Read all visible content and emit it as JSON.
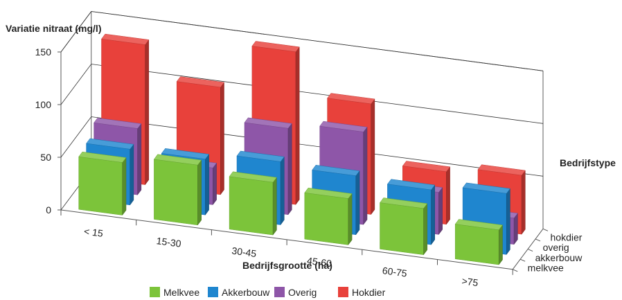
{
  "chart_data": {
    "type": "bar",
    "style": "3d-column",
    "title": "Variatie nitraat (mg/l)",
    "xlabel": "Bedrijfsgrootte (ha)",
    "zlabel": "Bedrijfstype",
    "ylim": [
      0,
      150
    ],
    "yticks": [
      "0",
      "50",
      "100",
      "150"
    ],
    "grid": true,
    "legend_position": "bottom",
    "categories": [
      "< 15",
      "15-30",
      "30-45",
      "45-60",
      "60-75",
      ">75"
    ],
    "depth_labels": [
      "melkvee",
      "akkerbouw",
      "overig",
      "hokdier"
    ],
    "series": [
      {
        "name": "Melkvee",
        "color": "#7cc43a",
        "values": [
          50,
          57,
          50,
          44,
          44,
          33
        ]
      },
      {
        "name": "Akkerbouw",
        "color": "#1f86cf",
        "values": [
          53,
          53,
          60,
          56,
          52,
          58
        ]
      },
      {
        "name": "Overig",
        "color": "#8e56a8",
        "values": [
          63,
          35,
          82,
          88,
          40,
          25
        ]
      },
      {
        "name": "Hokdier",
        "color": "#e8413b",
        "values": [
          133,
          102,
          145,
          105,
          50,
          56
        ]
      }
    ]
  }
}
